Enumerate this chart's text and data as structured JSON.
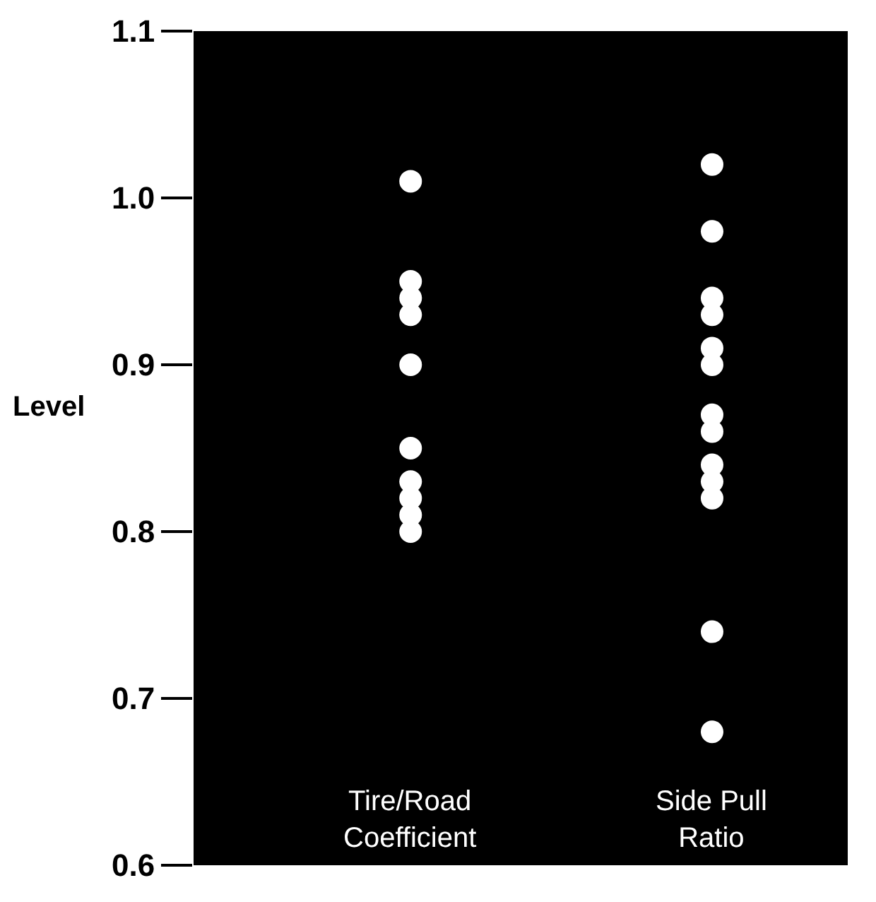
{
  "chart_data": {
    "type": "scatter",
    "ylabel": "Level",
    "categories": [
      "Tire/Road\nCoefficient",
      "Side Pull\nRatio"
    ],
    "series": [
      {
        "color": "#ffffff",
        "x": [
          "Tire/Road\nCoefficient",
          "Tire/Road\nCoefficient",
          "Tire/Road\nCoefficient",
          "Tire/Road\nCoefficient",
          "Tire/Road\nCoefficient",
          "Tire/Road\nCoefficient",
          "Tire/Road\nCoefficient",
          "Tire/Road\nCoefficient",
          "Tire/Road\nCoefficient",
          "Tire/Road\nCoefficient"
        ],
        "values": [
          1.01,
          0.95,
          0.94,
          0.93,
          0.9,
          0.85,
          0.83,
          0.82,
          0.81,
          0.8
        ]
      },
      {
        "color": "#ffffff",
        "x": [
          "Side Pull\nRatio",
          "Side Pull\nRatio",
          "Side Pull\nRatio",
          "Side Pull\nRatio",
          "Side Pull\nRatio",
          "Side Pull\nRatio",
          "Side Pull\nRatio",
          "Side Pull\nRatio",
          "Side Pull\nRatio",
          "Side Pull\nRatio",
          "Side Pull\nRatio",
          "Side Pull\nRatio",
          "Side Pull\nRatio"
        ],
        "values": [
          1.02,
          0.98,
          0.94,
          0.93,
          0.91,
          0.9,
          0.87,
          0.86,
          0.84,
          0.83,
          0.82,
          0.74,
          0.68
        ]
      }
    ],
    "ylim": [
      0.6,
      1.1
    ],
    "yticks": [
      0.6,
      0.7,
      0.8,
      0.9,
      {
        "value": 1.0,
        "label": "1.0"
      },
      1.1
    ],
    "grid": false,
    "marker": "circle"
  }
}
